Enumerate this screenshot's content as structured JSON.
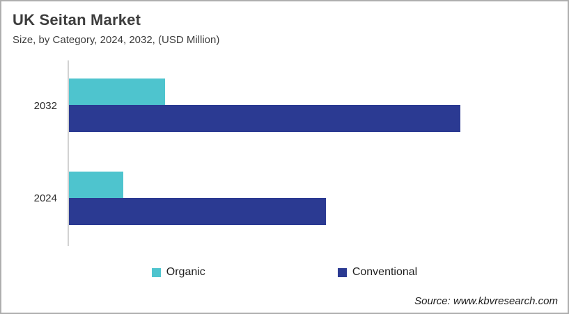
{
  "header": {
    "title": "UK Seitan Market",
    "subtitle": "Size, by Category, 2024, 2032, (USD Million)"
  },
  "chart_data": {
    "type": "bar",
    "orientation": "horizontal",
    "title": "UK Seitan Market",
    "subtitle": "Size, by Category, 2024, 2032, (USD Million)",
    "categories": [
      "2032",
      "2024"
    ],
    "series": [
      {
        "name": "Organic",
        "color": "#4ec4ce",
        "values": [
          138,
          78
        ]
      },
      {
        "name": "Conventional",
        "color": "#2b3a92",
        "values": [
          562,
          369
        ]
      }
    ],
    "xlim": [
      0,
      700
    ],
    "units": "relative length units (no value axis or data labels shown in chart)",
    "grid": false,
    "value_axis_visible": false,
    "legend_position": "bottom"
  },
  "footer": {
    "source": "Source: www.kbvresearch.com"
  },
  "colors": {
    "organic": "#4ec4ce",
    "conventional": "#2b3a92",
    "title_text": "#3d3d3d",
    "axis_line": "#d2d2d2",
    "frame_border": "#aeaeae"
  }
}
